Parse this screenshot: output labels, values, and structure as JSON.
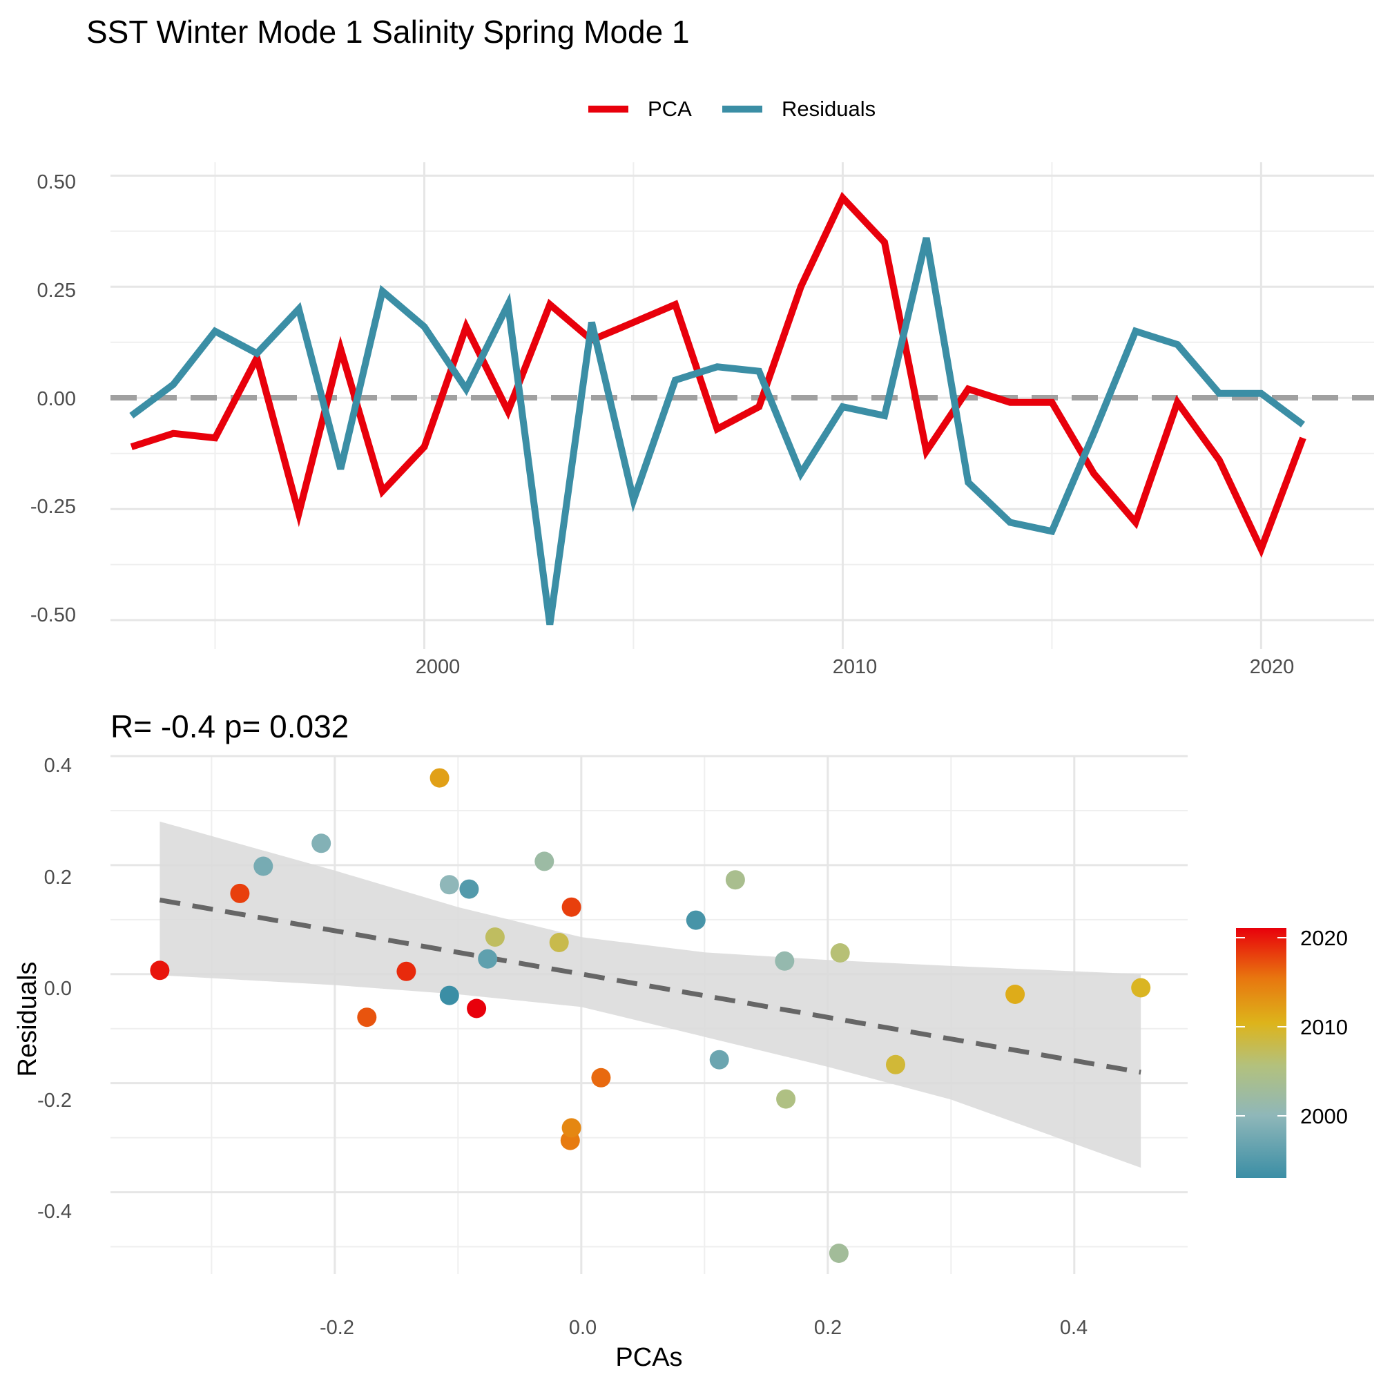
{
  "figure_title": "SST Winter Mode 1 Salinity Spring Mode 1",
  "colors": {
    "pca": "#e8000b",
    "residuals": "#3b8ea5",
    "zero_line": "#a0a0a0",
    "trend_line": "#666666",
    "ribbon": "#d9d9d9",
    "gradient": [
      "#3b8ea5",
      "#8fb7b9",
      "#b3c17d",
      "#ddb41b",
      "#e8760f",
      "#e8000b"
    ]
  },
  "chart_data": [
    {
      "type": "line",
      "title": "",
      "xlabel": "",
      "ylabel": "",
      "x": [
        1993,
        1994,
        1995,
        1996,
        1997,
        1998,
        1999,
        2000,
        2001,
        2002,
        2003,
        2004,
        2005,
        2006,
        2007,
        2008,
        2009,
        2010,
        2011,
        2012,
        2013,
        2014,
        2015,
        2016,
        2017,
        2018,
        2019,
        2020,
        2021
      ],
      "series": [
        {
          "name": "PCA",
          "values": [
            -0.11,
            -0.08,
            -0.09,
            0.09,
            -0.26,
            0.11,
            -0.21,
            -0.11,
            0.16,
            -0.03,
            0.21,
            0.13,
            0.17,
            0.21,
            -0.07,
            -0.02,
            0.25,
            0.45,
            0.35,
            -0.12,
            0.02,
            -0.01,
            -0.01,
            -0.17,
            -0.28,
            -0.01,
            -0.14,
            -0.34,
            -0.09
          ]
        },
        {
          "name": "Residuals",
          "values": [
            -0.04,
            0.03,
            0.15,
            0.1,
            0.2,
            -0.16,
            0.24,
            0.16,
            0.02,
            0.21,
            -0.51,
            0.17,
            -0.23,
            0.04,
            0.07,
            0.06,
            -0.17,
            -0.02,
            -0.04,
            0.36,
            -0.19,
            -0.28,
            -0.3,
            -0.08,
            0.15,
            0.12,
            0.01,
            0.01,
            -0.06
          ]
        }
      ],
      "xticks": [
        2000,
        2010,
        2020
      ],
      "yticks": [
        "0.50",
        "0.25",
        "0.00",
        "-0.25",
        "-0.50"
      ],
      "xlim": [
        1992.5,
        2022.7
      ],
      "ylim": [
        -0.565,
        0.53
      ],
      "legend": [
        "PCA",
        "Residuals"
      ],
      "legend_position": "top",
      "reference_line": 0,
      "grid": true
    },
    {
      "type": "scatter",
      "title": "R= -0.4  p= 0.032",
      "xlabel": "PCAs",
      "ylabel": "Residuals",
      "xticks": [
        "-0.2",
        "0.0",
        "0.2",
        "0.4"
      ],
      "yticks": [
        "0.4",
        "0.2",
        "0.0",
        "-0.2",
        "-0.4"
      ],
      "xlim": [
        -0.382,
        0.492
      ],
      "ylim": [
        -0.55,
        0.4
      ],
      "points": [
        {
          "x": -0.342,
          "y": 0.007,
          "year": 2020
        },
        {
          "x": -0.277,
          "y": 0.148,
          "year": 2018
        },
        {
          "x": -0.258,
          "y": 0.198,
          "year": 1998
        },
        {
          "x": -0.211,
          "y": 0.24,
          "year": 1999
        },
        {
          "x": -0.174,
          "y": -0.079,
          "year": 2017
        },
        {
          "x": -0.142,
          "y": 0.005,
          "year": 2019
        },
        {
          "x": -0.115,
          "y": 0.36,
          "year": 2012
        },
        {
          "x": -0.107,
          "y": 0.164,
          "year": 2000
        },
        {
          "x": -0.107,
          "y": -0.039,
          "year": 1993
        },
        {
          "x": -0.091,
          "y": 0.156,
          "year": 1995
        },
        {
          "x": -0.085,
          "y": -0.063,
          "year": 2021
        },
        {
          "x": -0.076,
          "y": 0.028,
          "year": 1996
        },
        {
          "x": -0.07,
          "y": 0.068,
          "year": 2007
        },
        {
          "x": -0.03,
          "y": 0.207,
          "year": 2002
        },
        {
          "x": -0.018,
          "y": 0.058,
          "year": 2008
        },
        {
          "x": -0.009,
          "y": -0.305,
          "year": 2015
        },
        {
          "x": -0.008,
          "y": -0.282,
          "year": 2014
        },
        {
          "x": -0.008,
          "y": 0.123,
          "year": 2018
        },
        {
          "x": 0.016,
          "y": -0.19,
          "year": 2016
        },
        {
          "x": 0.093,
          "y": 0.099,
          "year": 1994
        },
        {
          "x": 0.112,
          "y": -0.157,
          "year": 1997
        },
        {
          "x": 0.125,
          "y": 0.173,
          "year": 2004
        },
        {
          "x": 0.165,
          "y": 0.024,
          "year": 2001
        },
        {
          "x": 0.166,
          "y": -0.229,
          "year": 2005
        },
        {
          "x": 0.209,
          "y": -0.512,
          "year": 2003
        },
        {
          "x": 0.21,
          "y": 0.039,
          "year": 2006
        },
        {
          "x": 0.255,
          "y": -0.166,
          "year": 2009
        },
        {
          "x": 0.352,
          "y": -0.037,
          "year": 2011
        },
        {
          "x": 0.454,
          "y": -0.025,
          "year": 2010
        }
      ],
      "trend": {
        "x": [
          -0.342,
          0.454
        ],
        "y": [
          0.136,
          -0.18
        ]
      },
      "ribbon": {
        "x": [
          -0.342,
          -0.2,
          -0.1,
          0.0,
          0.1,
          0.2,
          0.3,
          0.454
        ],
        "upper": [
          0.28,
          0.19,
          0.123,
          0.068,
          0.04,
          0.026,
          0.015,
          0.0
        ],
        "lower": [
          -0.002,
          -0.02,
          -0.037,
          -0.06,
          -0.115,
          -0.17,
          -0.23,
          -0.355
        ]
      },
      "colorbar": {
        "ticks": [
          "2020",
          "2010",
          "2000"
        ],
        "range": [
          1993,
          2021
        ],
        "position": "right"
      },
      "grid": true
    }
  ]
}
